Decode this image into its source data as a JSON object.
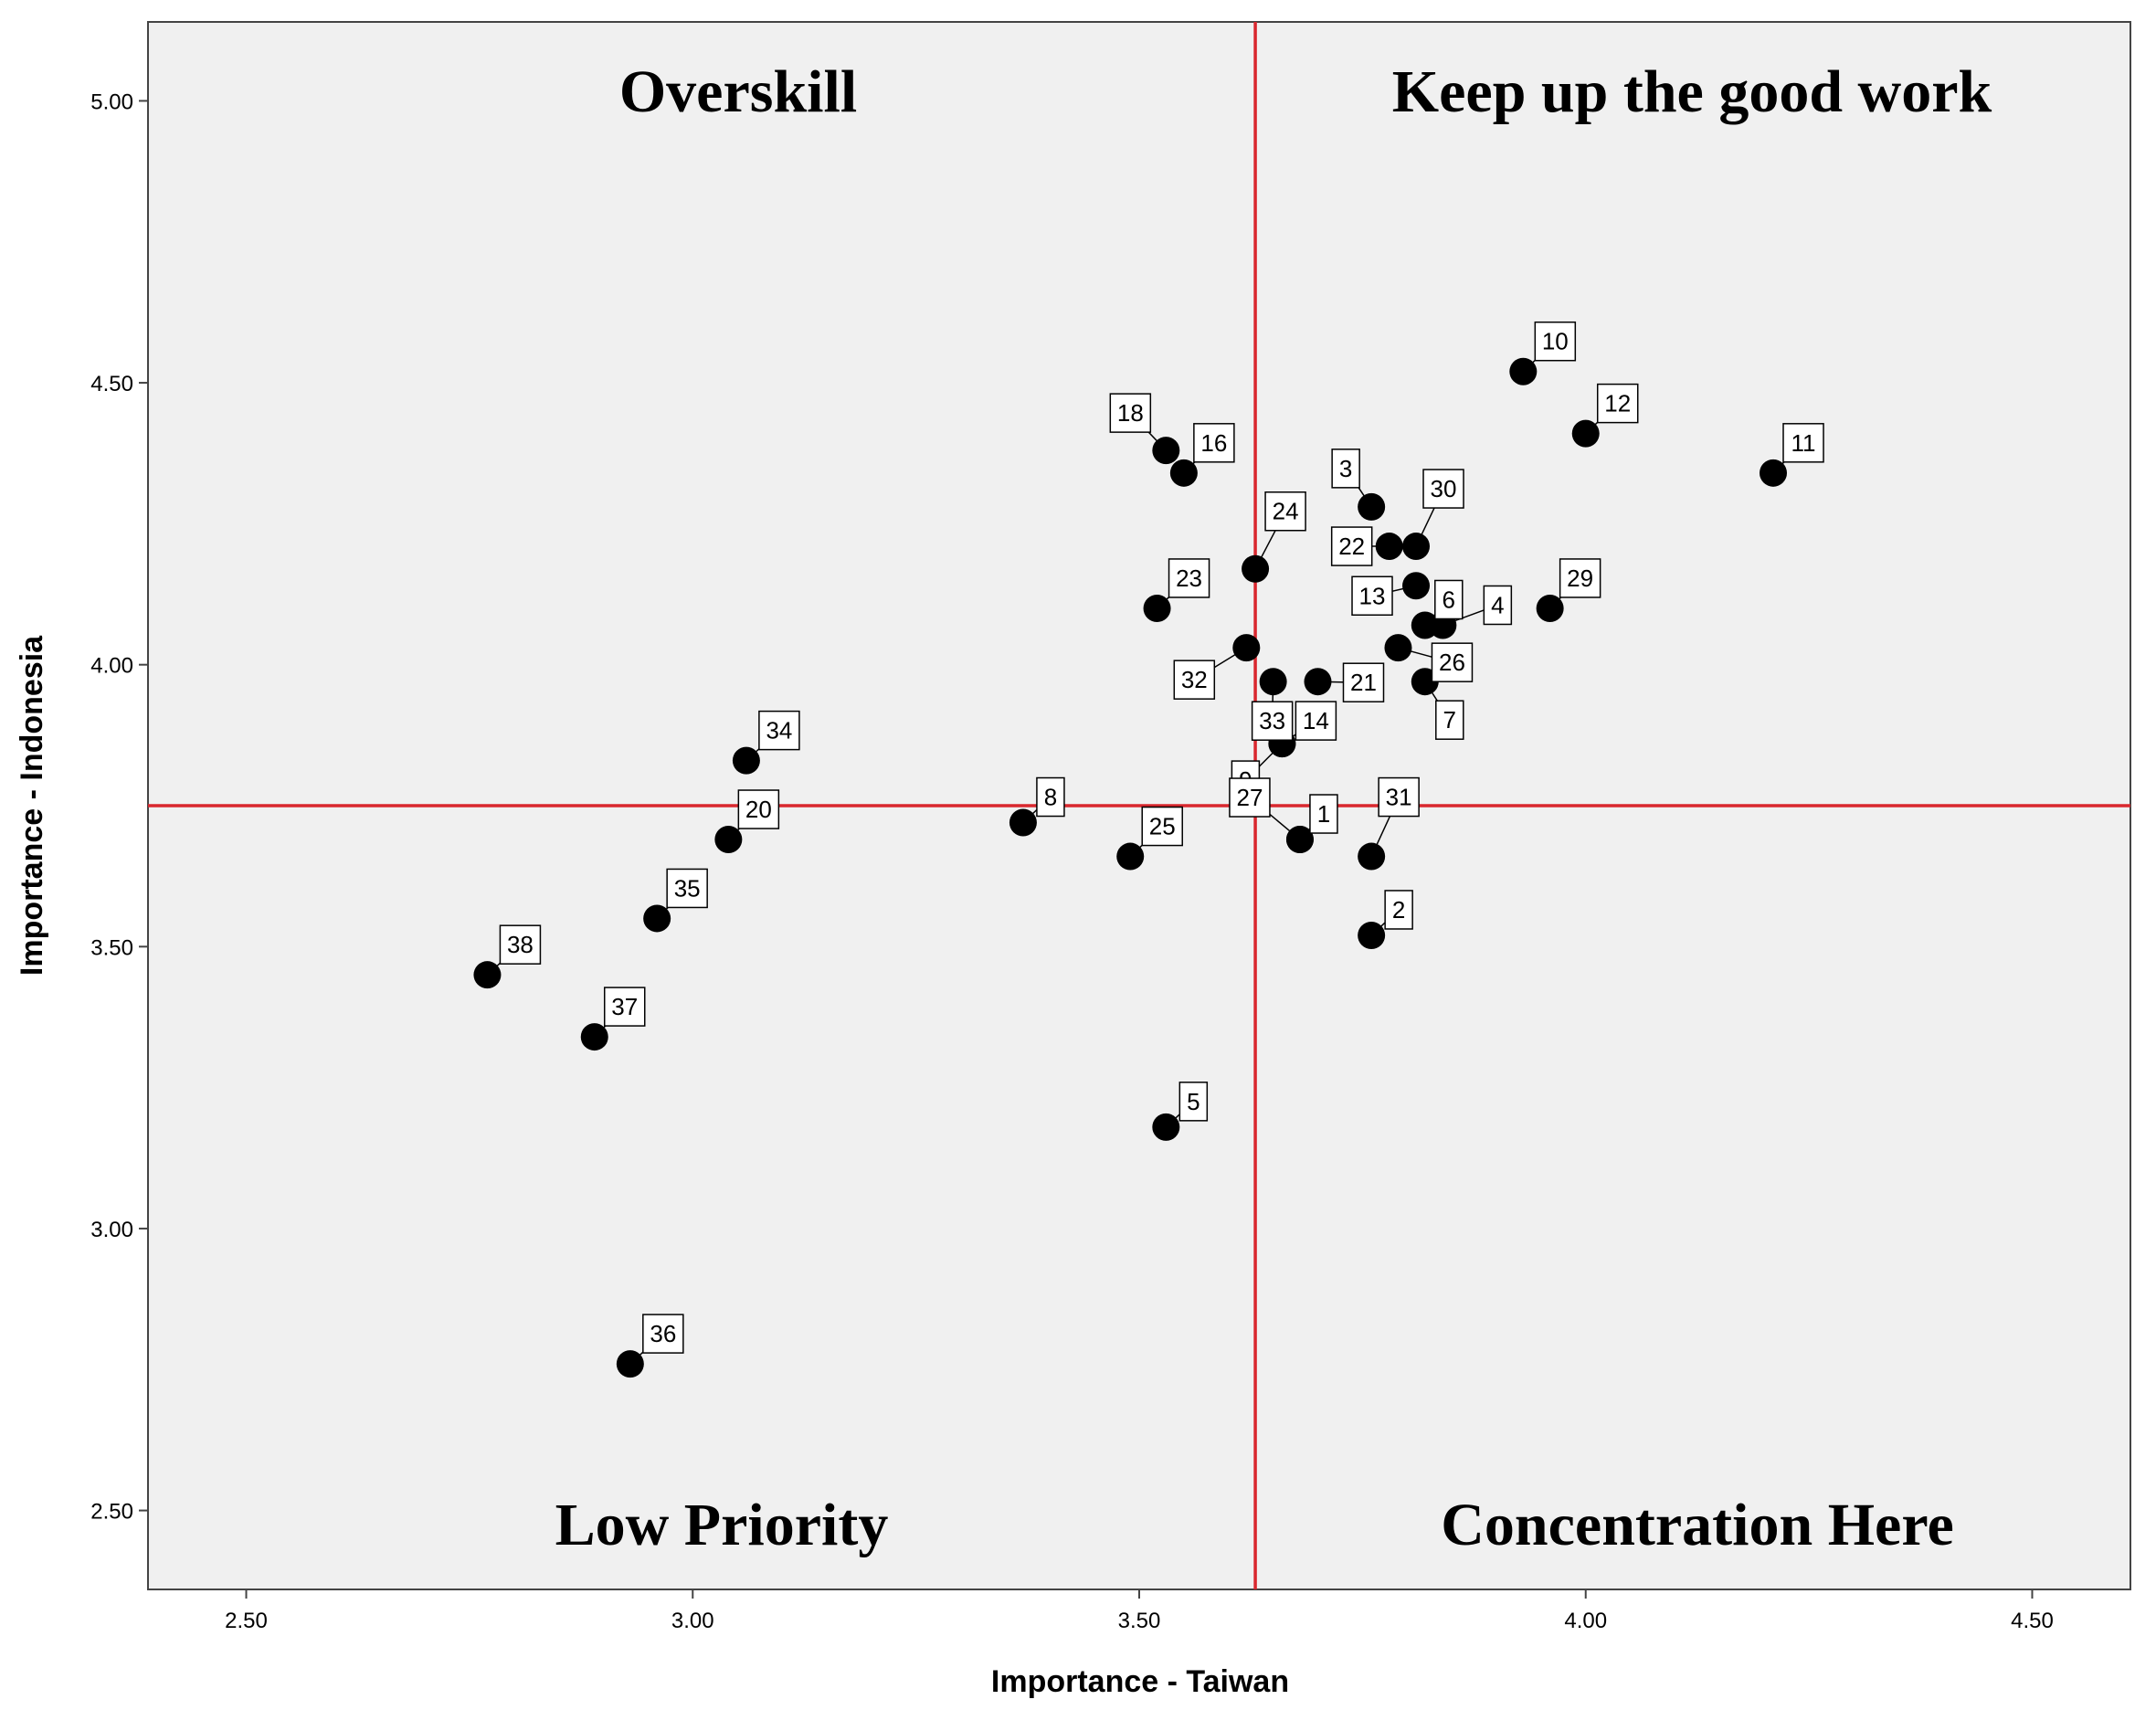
{
  "chart_data": {
    "type": "scatter",
    "xlabel": "Importance - Taiwan",
    "ylabel": "Importance - Indonesia",
    "xlim": [
      2.39,
      4.61
    ],
    "ylim": [
      2.36,
      5.14
    ],
    "xticks": [
      "2.50",
      "3.00",
      "3.50",
      "4.00",
      "4.50"
    ],
    "yticks": [
      "2.50",
      "3.00",
      "3.50",
      "4.00",
      "4.50",
      "5.00"
    ],
    "reference_lines": {
      "x": 3.63,
      "y": 3.75,
      "color": "#d9272e"
    },
    "quadrant_labels": {
      "top_left": "Overskill",
      "top_right": "Keep up the good work",
      "bottom_left": "Low Priority",
      "bottom_right": "Concentration Here"
    },
    "plot_background": "#f0f0f0",
    "marker_color": "#000000",
    "points": [
      {
        "label": "1",
        "x": 3.68,
        "y": 3.69
      },
      {
        "label": "2",
        "x": 3.76,
        "y": 3.52
      },
      {
        "label": "3",
        "x": 3.76,
        "y": 4.28
      },
      {
        "label": "4",
        "x": 3.84,
        "y": 4.07
      },
      {
        "label": "5",
        "x": 3.53,
        "y": 3.18
      },
      {
        "label": "6",
        "x": 3.82,
        "y": 4.07
      },
      {
        "label": "7",
        "x": 3.82,
        "y": 3.97
      },
      {
        "label": "8",
        "x": 3.37,
        "y": 3.72
      },
      {
        "label": "9",
        "x": 3.66,
        "y": 3.86
      },
      {
        "label": "10",
        "x": 3.93,
        "y": 4.52
      },
      {
        "label": "11",
        "x": 4.21,
        "y": 4.34
      },
      {
        "label": "12",
        "x": 4.0,
        "y": 4.41
      },
      {
        "label": "13",
        "x": 3.81,
        "y": 4.14
      },
      {
        "label": "14",
        "x": 3.66,
        "y": 3.86
      },
      {
        "label": "16",
        "x": 3.55,
        "y": 4.34
      },
      {
        "label": "18",
        "x": 3.53,
        "y": 4.38
      },
      {
        "label": "20",
        "x": 3.04,
        "y": 3.69
      },
      {
        "label": "21",
        "x": 3.7,
        "y": 3.97
      },
      {
        "label": "22",
        "x": 3.78,
        "y": 4.21
      },
      {
        "label": "23",
        "x": 3.52,
        "y": 4.1
      },
      {
        "label": "24",
        "x": 3.63,
        "y": 4.17
      },
      {
        "label": "25",
        "x": 3.49,
        "y": 3.66
      },
      {
        "label": "26",
        "x": 3.79,
        "y": 4.03
      },
      {
        "label": "27",
        "x": 3.68,
        "y": 3.69
      },
      {
        "label": "29",
        "x": 3.96,
        "y": 4.1
      },
      {
        "label": "30",
        "x": 3.81,
        "y": 4.21
      },
      {
        "label": "31",
        "x": 3.76,
        "y": 3.66
      },
      {
        "label": "32",
        "x": 3.62,
        "y": 4.03
      },
      {
        "label": "33",
        "x": 3.65,
        "y": 3.97
      },
      {
        "label": "34",
        "x": 3.06,
        "y": 3.83
      },
      {
        "label": "35",
        "x": 2.96,
        "y": 3.55
      },
      {
        "label": "36",
        "x": 2.93,
        "y": 2.76
      },
      {
        "label": "37",
        "x": 2.89,
        "y": 3.34
      },
      {
        "label": "38",
        "x": 2.77,
        "y": 3.45
      }
    ]
  }
}
